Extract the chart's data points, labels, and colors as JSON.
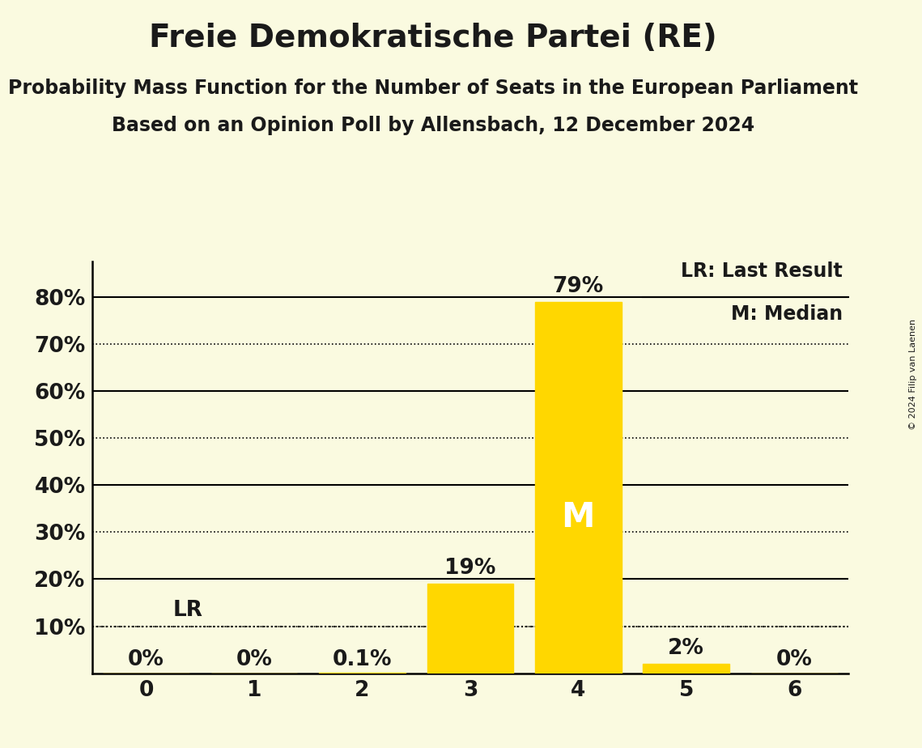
{
  "title": "Freie Demokratische Partei (RE)",
  "subtitle1": "Probability Mass Function for the Number of Seats in the European Parliament",
  "subtitle2": "Based on an Opinion Poll by Allensbach, 12 December 2024",
  "copyright": "© 2024 Filip van Laenen",
  "categories": [
    0,
    1,
    2,
    3,
    4,
    5,
    6
  ],
  "values": [
    0.0,
    0.0,
    0.001,
    0.19,
    0.79,
    0.02,
    0.0
  ],
  "labels": [
    "0%",
    "0%",
    "0.1%",
    "19%",
    "79%",
    "2%",
    "0%"
  ],
  "bar_color": "#FFD700",
  "background_color": "#FAFAE0",
  "title_fontsize": 28,
  "subtitle_fontsize": 17,
  "axis_tick_fontsize": 19,
  "bar_label_fontsize": 19,
  "legend_fontsize": 17,
  "ylim": [
    0,
    0.875
  ],
  "yticks": [
    0.0,
    0.1,
    0.2,
    0.3,
    0.4,
    0.5,
    0.6,
    0.7,
    0.8
  ],
  "ytick_labels": [
    "",
    "10%",
    "20%",
    "30%",
    "40%",
    "50%",
    "60%",
    "70%",
    "80%"
  ],
  "lr_value": 0.1,
  "lr_seat": 3,
  "median_seat": 4,
  "median_label": "M",
  "lr_label": "LR",
  "legend_lr": "LR: Last Result",
  "legend_m": "M: Median",
  "dotted_gridlines": [
    0.1,
    0.3,
    0.5,
    0.7
  ],
  "solid_gridlines": [
    0.2,
    0.4,
    0.6,
    0.8
  ],
  "text_color": "#1a1a1a"
}
